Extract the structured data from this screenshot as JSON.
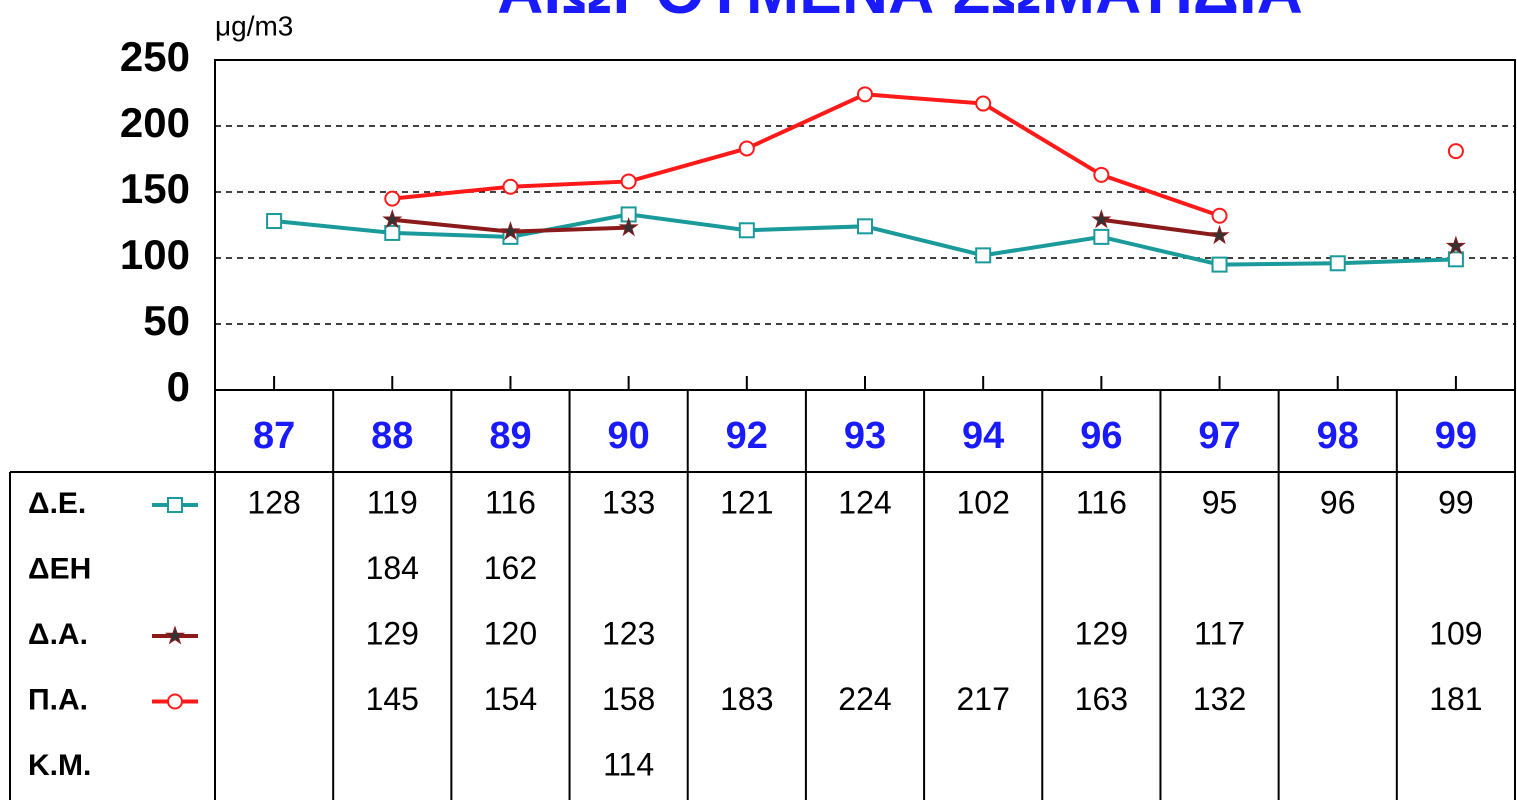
{
  "chart_data": {
    "type": "line",
    "title": "ΑΙΩΡΟΥΜΕΝΑ ΣΩΜΑΤΙΔΙΑ",
    "y_label": "μg/m3",
    "categories": [
      "87",
      "88",
      "89",
      "90",
      "92",
      "93",
      "94",
      "96",
      "97",
      "98",
      "99"
    ],
    "series": [
      {
        "name": "Δ.Ε.",
        "color": "#1a9a9a",
        "marker": "square",
        "values": [
          128,
          119,
          116,
          133,
          121,
          124,
          102,
          116,
          95,
          96,
          99
        ]
      },
      {
        "name": "ΔΕΗ",
        "values": [
          null,
          184,
          162,
          null,
          null,
          null,
          null,
          null,
          null,
          null,
          null
        ]
      },
      {
        "name": "Δ.Α.",
        "color": "#8b1a1a",
        "marker": "star",
        "values": [
          null,
          129,
          120,
          123,
          null,
          null,
          null,
          129,
          117,
          null,
          109
        ]
      },
      {
        "name": "Π.Α.",
        "color": "#ff1a1a",
        "marker": "circle",
        "values": [
          null,
          145,
          154,
          158,
          183,
          224,
          217,
          163,
          132,
          null,
          181
        ]
      },
      {
        "name": "Κ.Μ.",
        "values": [
          null,
          null,
          null,
          114,
          null,
          null,
          null,
          null,
          null,
          null,
          null
        ]
      }
    ],
    "ylim": [
      0,
      250
    ],
    "yticks": [
      0,
      50,
      100,
      150,
      200,
      250
    ],
    "grid": true
  }
}
